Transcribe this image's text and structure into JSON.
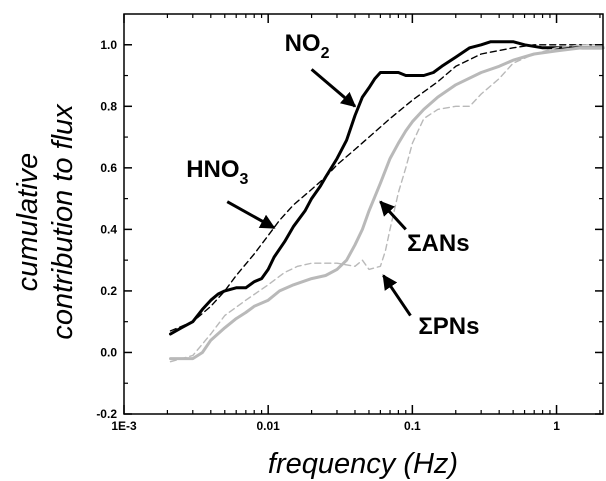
{
  "chart_data": {
    "type": "line",
    "xscale": "log",
    "xlim": [
      0.001,
      2.1
    ],
    "ylim": [
      -0.2,
      1.1
    ],
    "xlabel": "frequency (Hz)",
    "ylabel_line1": "cumulative",
    "ylabel_line2": "contribution to flux",
    "x_ticks": [
      {
        "value": 0.001,
        "label": "1E-3"
      },
      {
        "value": 0.01,
        "label": "0.01"
      },
      {
        "value": 0.1,
        "label": "0.1"
      },
      {
        "value": 1,
        "label": "1"
      }
    ],
    "y_ticks": [
      {
        "value": -0.2,
        "label": "-0.2"
      },
      {
        "value": 0.0,
        "label": "0.0"
      },
      {
        "value": 0.2,
        "label": "0.2"
      },
      {
        "value": 0.4,
        "label": "0.4"
      },
      {
        "value": 0.6,
        "label": "0.6"
      },
      {
        "value": 0.8,
        "label": "0.8"
      },
      {
        "value": 1.0,
        "label": "1.0"
      }
    ],
    "grid": false,
    "series": [
      {
        "name": "NO2",
        "color": "#000000",
        "style": "solid",
        "width": 3,
        "points": [
          [
            0.0021,
            0.06
          ],
          [
            0.0025,
            0.08
          ],
          [
            0.003,
            0.1
          ],
          [
            0.0035,
            0.14
          ],
          [
            0.004,
            0.17
          ],
          [
            0.0045,
            0.19
          ],
          [
            0.005,
            0.2
          ],
          [
            0.006,
            0.21
          ],
          [
            0.007,
            0.21
          ],
          [
            0.008,
            0.23
          ],
          [
            0.009,
            0.24
          ],
          [
            0.01,
            0.27
          ],
          [
            0.011,
            0.31
          ],
          [
            0.013,
            0.36
          ],
          [
            0.015,
            0.41
          ],
          [
            0.018,
            0.46
          ],
          [
            0.02,
            0.5
          ],
          [
            0.023,
            0.54
          ],
          [
            0.025,
            0.57
          ],
          [
            0.03,
            0.63
          ],
          [
            0.035,
            0.69
          ],
          [
            0.04,
            0.77
          ],
          [
            0.045,
            0.83
          ],
          [
            0.05,
            0.86
          ],
          [
            0.055,
            0.89
          ],
          [
            0.06,
            0.91
          ],
          [
            0.07,
            0.91
          ],
          [
            0.08,
            0.91
          ],
          [
            0.09,
            0.9
          ],
          [
            0.1,
            0.9
          ],
          [
            0.12,
            0.9
          ],
          [
            0.14,
            0.91
          ],
          [
            0.16,
            0.93
          ],
          [
            0.2,
            0.96
          ],
          [
            0.25,
            0.99
          ],
          [
            0.3,
            1.0
          ],
          [
            0.35,
            1.01
          ],
          [
            0.5,
            1.01
          ],
          [
            0.6,
            1.0
          ],
          [
            0.8,
            0.99
          ],
          [
            1.0,
            0.99
          ],
          [
            1.5,
            0.99
          ],
          [
            2.1,
            0.99
          ]
        ]
      },
      {
        "name": "HNO3",
        "color": "#000000",
        "style": "dashed",
        "width": 1.4,
        "points": [
          [
            0.0021,
            0.07
          ],
          [
            0.003,
            0.1
          ],
          [
            0.004,
            0.15
          ],
          [
            0.005,
            0.2
          ],
          [
            0.006,
            0.25
          ],
          [
            0.008,
            0.32
          ],
          [
            0.01,
            0.38
          ],
          [
            0.012,
            0.43
          ],
          [
            0.015,
            0.48
          ],
          [
            0.02,
            0.53
          ],
          [
            0.025,
            0.57
          ],
          [
            0.03,
            0.61
          ],
          [
            0.04,
            0.66
          ],
          [
            0.05,
            0.7
          ],
          [
            0.07,
            0.76
          ],
          [
            0.1,
            0.82
          ],
          [
            0.15,
            0.88
          ],
          [
            0.2,
            0.93
          ],
          [
            0.3,
            0.97
          ],
          [
            0.5,
            0.99
          ],
          [
            0.7,
            1.0
          ],
          [
            1.0,
            1.0
          ],
          [
            2.1,
            1.0
          ]
        ]
      },
      {
        "name": "ΣANs",
        "color": "#b9b9b9",
        "style": "solid",
        "width": 3,
        "points": [
          [
            0.0021,
            -0.02
          ],
          [
            0.0025,
            -0.02
          ],
          [
            0.003,
            -0.02
          ],
          [
            0.0035,
            0.0
          ],
          [
            0.004,
            0.04
          ],
          [
            0.005,
            0.08
          ],
          [
            0.006,
            0.11
          ],
          [
            0.007,
            0.13
          ],
          [
            0.008,
            0.15
          ],
          [
            0.01,
            0.17
          ],
          [
            0.012,
            0.2
          ],
          [
            0.015,
            0.22
          ],
          [
            0.02,
            0.24
          ],
          [
            0.025,
            0.25
          ],
          [
            0.03,
            0.27
          ],
          [
            0.035,
            0.3
          ],
          [
            0.04,
            0.35
          ],
          [
            0.045,
            0.4
          ],
          [
            0.05,
            0.46
          ],
          [
            0.06,
            0.55
          ],
          [
            0.07,
            0.63
          ],
          [
            0.08,
            0.68
          ],
          [
            0.09,
            0.72
          ],
          [
            0.1,
            0.75
          ],
          [
            0.12,
            0.79
          ],
          [
            0.15,
            0.83
          ],
          [
            0.2,
            0.87
          ],
          [
            0.3,
            0.91
          ],
          [
            0.4,
            0.93
          ],
          [
            0.5,
            0.95
          ],
          [
            0.7,
            0.97
          ],
          [
            1.0,
            0.98
          ],
          [
            1.5,
            0.99
          ],
          [
            2.1,
            0.99
          ]
        ]
      },
      {
        "name": "ΣPNs",
        "color": "#b9b9b9",
        "style": "dashed",
        "width": 1.4,
        "points": [
          [
            0.0021,
            -0.03
          ],
          [
            0.003,
            -0.01
          ],
          [
            0.004,
            0.06
          ],
          [
            0.005,
            0.12
          ],
          [
            0.007,
            0.17
          ],
          [
            0.01,
            0.22
          ],
          [
            0.013,
            0.26
          ],
          [
            0.016,
            0.28
          ],
          [
            0.02,
            0.29
          ],
          [
            0.03,
            0.29
          ],
          [
            0.04,
            0.28
          ],
          [
            0.045,
            0.3
          ],
          [
            0.05,
            0.27
          ],
          [
            0.06,
            0.28
          ],
          [
            0.065,
            0.33
          ],
          [
            0.07,
            0.4
          ],
          [
            0.08,
            0.52
          ],
          [
            0.09,
            0.6
          ],
          [
            0.1,
            0.68
          ],
          [
            0.12,
            0.76
          ],
          [
            0.15,
            0.79
          ],
          [
            0.2,
            0.8
          ],
          [
            0.25,
            0.8
          ],
          [
            0.3,
            0.84
          ],
          [
            0.4,
            0.89
          ],
          [
            0.5,
            0.94
          ],
          [
            0.7,
            0.97
          ],
          [
            1.0,
            0.99
          ],
          [
            1.5,
            1.0
          ],
          [
            2.1,
            1.0
          ]
        ]
      }
    ],
    "annotations": [
      {
        "name": "no2",
        "main": "NO",
        "sub": "2",
        "x": 0.013,
        "y": 0.98,
        "arrow_from": [
          0.02,
          0.92
        ],
        "arrow_to": [
          0.04,
          0.8
        ]
      },
      {
        "name": "hno3",
        "main": "HNO",
        "sub": "3",
        "x": 0.0027,
        "y": 0.57,
        "arrow_from": [
          0.0052,
          0.49
        ],
        "arrow_to": [
          0.011,
          0.405
        ]
      },
      {
        "name": "ans",
        "main": "ΣANs",
        "sub": "",
        "x": 0.092,
        "y": 0.33,
        "arrow_from": [
          0.09,
          0.4
        ],
        "arrow_to": [
          0.06,
          0.49
        ]
      },
      {
        "name": "pns",
        "main": "ΣPNs",
        "sub": "",
        "x": 0.11,
        "y": 0.06,
        "arrow_from": [
          0.097,
          0.12
        ],
        "arrow_to": [
          0.063,
          0.25
        ]
      }
    ]
  }
}
